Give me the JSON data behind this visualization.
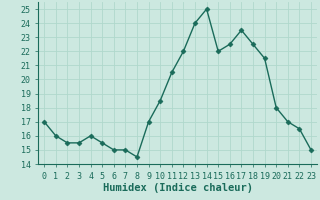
{
  "x": [
    0,
    1,
    2,
    3,
    4,
    5,
    6,
    7,
    8,
    9,
    10,
    11,
    12,
    13,
    14,
    15,
    16,
    17,
    18,
    19,
    20,
    21,
    22,
    23
  ],
  "y": [
    17,
    16,
    15.5,
    15.5,
    16,
    15.5,
    15,
    15,
    14.5,
    17,
    18.5,
    20.5,
    22,
    24,
    25,
    22,
    22.5,
    23.5,
    22.5,
    21.5,
    18,
    17,
    16.5,
    15
  ],
  "line_color": "#1a6b5a",
  "bg_color": "#cce8e0",
  "grid_color": "#b0d8cc",
  "xlabel": "Humidex (Indice chaleur)",
  "xlim": [
    -0.5,
    23.5
  ],
  "ylim": [
    14,
    25.5
  ],
  "yticks": [
    14,
    15,
    16,
    17,
    18,
    19,
    20,
    21,
    22,
    23,
    24,
    25
  ],
  "xticks": [
    0,
    1,
    2,
    3,
    4,
    5,
    6,
    7,
    8,
    9,
    10,
    11,
    12,
    13,
    14,
    15,
    16,
    17,
    18,
    19,
    20,
    21,
    22,
    23
  ],
  "marker": "D",
  "markersize": 2.5,
  "linewidth": 1.0,
  "xlabel_fontsize": 7.5,
  "tick_fontsize": 6,
  "tick_color": "#1a6b5a",
  "label_color": "#1a6b5a",
  "spine_color": "#1a6b5a"
}
